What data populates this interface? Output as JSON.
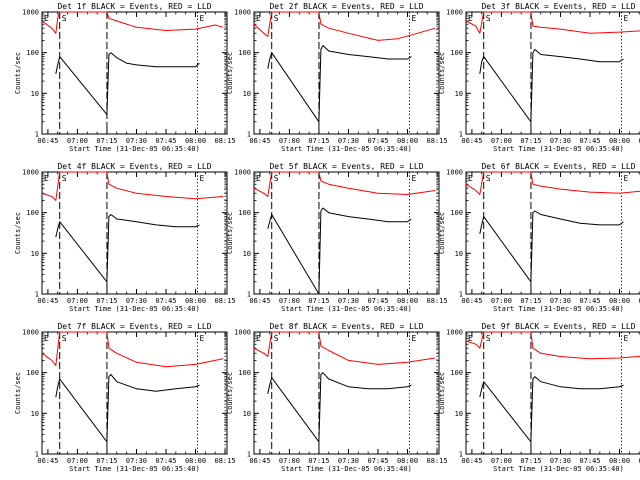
{
  "chart_data": {
    "type": "line",
    "log_y": true,
    "ylim": [
      1,
      1000
    ],
    "y_ticks": [
      1,
      10,
      100,
      1000
    ],
    "y_tick_labels": [
      "1",
      "10",
      "100",
      "1000"
    ],
    "x_range": [
      "06:42",
      "08:16"
    ],
    "x_ticks": [
      "06:45",
      "07:00",
      "07:15",
      "07:30",
      "07:45",
      "08:00",
      "08:15"
    ],
    "xlabel": "Start Time (31-Dec-05 06:35:40)",
    "ylabel": "Counts/sec",
    "line_colors": {
      "events": "#000000",
      "lld": "#ff0000"
    },
    "markers": [
      {
        "label": "E",
        "time": "06:42",
        "style": "dotted"
      },
      {
        "label": "S",
        "time": "06:51",
        "style": "dashed"
      },
      {
        "label": "",
        "time": "07:15",
        "style": "dashed"
      },
      {
        "label": "E",
        "time": "08:01",
        "style": "dotted"
      },
      {
        "label": "",
        "time": "08:15",
        "style": "dotted"
      }
    ],
    "panels": [
      {
        "title": "Det 1f BLACK = Events, RED = LLD",
        "series": [
          {
            "name": "Events",
            "color": "#000000",
            "x": [
              "06:49",
              "06:50",
              "06:51",
              "07:15",
              "07:16",
              "07:17",
              "07:20",
              "07:25",
              "07:30",
              "07:40",
              "07:50",
              "08:00",
              "08:02"
            ],
            "y": [
              30,
              50,
              80,
              3,
              90,
              100,
              75,
              55,
              50,
              45,
              45,
              45,
              55
            ]
          },
          {
            "name": "LLD",
            "color": "#ff0000",
            "x": [
              "06:42",
              "06:47",
              "06:49",
              "06:50",
              "06:51",
              "07:15",
              "07:16",
              "07:20",
              "07:30",
              "07:45",
              "08:00",
              "08:10",
              "08:14"
            ],
            "y": [
              600,
              400,
              300,
              700,
              1000,
              1000,
              700,
              600,
              420,
              350,
              380,
              480,
              420
            ]
          }
        ]
      },
      {
        "title": "Det 2f BLACK = Events, RED = LLD",
        "series": [
          {
            "name": "Events",
            "color": "#000000",
            "x": [
              "06:49",
              "06:50",
              "06:51",
              "07:15",
              "07:16",
              "07:17",
              "07:20",
              "07:30",
              "07:40",
              "07:50",
              "08:00",
              "08:02"
            ],
            "y": [
              40,
              70,
              100,
              2,
              120,
              150,
              110,
              90,
              80,
              70,
              70,
              80
            ]
          },
          {
            "name": "LLD",
            "color": "#ff0000",
            "x": [
              "06:42",
              "06:47",
              "06:49",
              "06:51",
              "07:15",
              "07:16",
              "07:20",
              "07:30",
              "07:45",
              "07:55",
              "08:05",
              "08:14"
            ],
            "y": [
              500,
              300,
              250,
              1000,
              1000,
              500,
              400,
              300,
              200,
              220,
              300,
              400
            ]
          }
        ]
      },
      {
        "title": "Det 3f BLACK = Events, RED = LLD",
        "series": [
          {
            "name": "Events",
            "color": "#000000",
            "x": [
              "06:49",
              "06:50",
              "06:51",
              "07:15",
              "07:16",
              "07:17",
              "07:20",
              "07:30",
              "07:40",
              "07:50",
              "08:00",
              "08:02"
            ],
            "y": [
              30,
              60,
              80,
              2,
              100,
              120,
              90,
              80,
              70,
              60,
              60,
              70
            ]
          },
          {
            "name": "LLD",
            "color": "#ff0000",
            "x": [
              "06:42",
              "06:47",
              "06:49",
              "06:51",
              "07:15",
              "07:16",
              "07:20",
              "07:30",
              "07:45",
              "08:00",
              "08:14"
            ],
            "y": [
              600,
              450,
              300,
              1000,
              1000,
              450,
              420,
              380,
              300,
              320,
              350
            ]
          }
        ]
      },
      {
        "title": "Det 4f BLACK = Events, RED = LLD",
        "series": [
          {
            "name": "Events",
            "color": "#000000",
            "x": [
              "06:49",
              "06:50",
              "06:51",
              "07:15",
              "07:16",
              "07:17",
              "07:20",
              "07:30",
              "07:40",
              "07:50",
              "08:00",
              "08:02"
            ],
            "y": [
              25,
              40,
              60,
              2,
              80,
              90,
              70,
              60,
              50,
              45,
              45,
              50
            ]
          },
          {
            "name": "LLD",
            "color": "#ff0000",
            "x": [
              "06:42",
              "06:47",
              "06:49",
              "06:51",
              "07:15",
              "07:16",
              "07:20",
              "07:30",
              "07:45",
              "08:00",
              "08:14"
            ],
            "y": [
              300,
              250,
              200,
              1000,
              1000,
              500,
              400,
              300,
              250,
              220,
              250
            ]
          }
        ]
      },
      {
        "title": "Det 5f BLACK = Events, RED = LLD",
        "series": [
          {
            "name": "Events",
            "color": "#000000",
            "x": [
              "06:49",
              "06:50",
              "06:51",
              "07:15",
              "07:16",
              "07:17",
              "07:20",
              "07:30",
              "07:40",
              "07:50",
              "08:00",
              "08:02"
            ],
            "y": [
              40,
              60,
              90,
              1,
              110,
              130,
              100,
              80,
              70,
              60,
              60,
              70
            ]
          },
          {
            "name": "LLD",
            "color": "#ff0000",
            "x": [
              "06:42",
              "06:47",
              "06:49",
              "06:51",
              "07:15",
              "07:16",
              "07:20",
              "07:30",
              "07:45",
              "08:00",
              "08:14"
            ],
            "y": [
              400,
              300,
              250,
              1000,
              1000,
              600,
              500,
              400,
              300,
              280,
              350
            ]
          }
        ]
      },
      {
        "title": "Det 6f BLACK = Events, RED = LLD",
        "series": [
          {
            "name": "Events",
            "color": "#000000",
            "x": [
              "06:49",
              "06:50",
              "06:51",
              "07:15",
              "07:16",
              "07:17",
              "07:20",
              "07:30",
              "07:40",
              "07:50",
              "08:00",
              "08:02"
            ],
            "y": [
              30,
              50,
              80,
              2,
              100,
              110,
              90,
              70,
              55,
              50,
              50,
              60
            ]
          },
          {
            "name": "LLD",
            "color": "#ff0000",
            "x": [
              "06:42",
              "06:47",
              "06:49",
              "06:51",
              "07:15",
              "07:16",
              "07:20",
              "07:30",
              "07:45",
              "08:00",
              "08:14"
            ],
            "y": [
              500,
              350,
              280,
              1000,
              1000,
              500,
              450,
              380,
              320,
              300,
              350
            ]
          }
        ]
      },
      {
        "title": "Det 7f BLACK = Events, RED = LLD",
        "series": [
          {
            "name": "Events",
            "color": "#000000",
            "x": [
              "06:49",
              "06:50",
              "06:51",
              "07:15",
              "07:16",
              "07:17",
              "07:20",
              "07:30",
              "07:40",
              "07:50",
              "08:00",
              "08:02"
            ],
            "y": [
              25,
              45,
              70,
              2,
              80,
              90,
              60,
              40,
              35,
              40,
              45,
              50
            ]
          },
          {
            "name": "LLD",
            "color": "#ff0000",
            "x": [
              "06:42",
              "06:47",
              "06:49",
              "06:51",
              "07:15",
              "07:16",
              "07:20",
              "07:30",
              "07:45",
              "08:00",
              "08:14"
            ],
            "y": [
              300,
              200,
              150,
              1000,
              1000,
              400,
              300,
              180,
              140,
              160,
              220
            ]
          }
        ]
      },
      {
        "title": "Det 8f BLACK = Events, RED = LLD",
        "series": [
          {
            "name": "Events",
            "color": "#000000",
            "x": [
              "06:49",
              "06:50",
              "06:51",
              "07:15",
              "07:16",
              "07:17",
              "07:20",
              "07:30",
              "07:40",
              "07:50",
              "08:00",
              "08:02"
            ],
            "y": [
              30,
              50,
              75,
              2,
              90,
              100,
              70,
              45,
              40,
              40,
              45,
              50
            ]
          },
          {
            "name": "LLD",
            "color": "#ff0000",
            "x": [
              "06:42",
              "06:47",
              "06:49",
              "06:51",
              "07:15",
              "07:16",
              "07:20",
              "07:30",
              "07:45",
              "08:00",
              "08:14"
            ],
            "y": [
              400,
              300,
              250,
              1000,
              1000,
              450,
              350,
              200,
              160,
              180,
              230
            ]
          }
        ]
      },
      {
        "title": "Det 9f BLACK = Events, RED = LLD",
        "series": [
          {
            "name": "Events",
            "color": "#000000",
            "x": [
              "06:49",
              "06:50",
              "06:51",
              "07:15",
              "07:16",
              "07:17",
              "07:20",
              "07:30",
              "07:40",
              "07:50",
              "08:00",
              "08:02"
            ],
            "y": [
              25,
              40,
              60,
              2,
              70,
              80,
              60,
              45,
              40,
              40,
              45,
              50
            ]
          },
          {
            "name": "LLD",
            "color": "#ff0000",
            "x": [
              "06:42",
              "06:47",
              "06:49",
              "06:51",
              "07:15",
              "07:16",
              "07:20",
              "07:30",
              "07:45",
              "08:00",
              "08:14"
            ],
            "y": [
              600,
              500,
              400,
              1000,
              1000,
              400,
              300,
              250,
              220,
              230,
              260
            ]
          }
        ]
      }
    ]
  }
}
